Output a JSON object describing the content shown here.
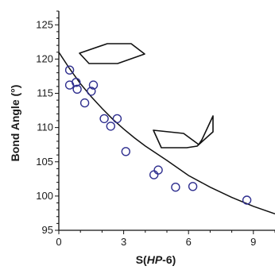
{
  "chart_data": {
    "type": "scatter",
    "xlabel": "S(HP-6)",
    "xlabel_parts": [
      {
        "text": "S(",
        "italic": false
      },
      {
        "text": "HP",
        "italic": true
      },
      {
        "text": "-6)",
        "italic": false
      }
    ],
    "ylabel": "Bond Angle (°)",
    "xlim": [
      0,
      10
    ],
    "ylim": [
      95,
      127
    ],
    "x_ticks": [
      0,
      3,
      6,
      9
    ],
    "y_ticks": [
      95,
      100,
      105,
      110,
      115,
      120,
      125
    ],
    "grid": false,
    "legend": "none",
    "marker_color": "#2f2f8f",
    "line_color": "#111111",
    "points": [
      {
        "x": 0.5,
        "y": 118.4
      },
      {
        "x": 0.5,
        "y": 116.2
      },
      {
        "x": 0.8,
        "y": 116.6
      },
      {
        "x": 0.85,
        "y": 115.6
      },
      {
        "x": 1.2,
        "y": 113.6
      },
      {
        "x": 1.5,
        "y": 115.3
      },
      {
        "x": 1.6,
        "y": 116.2
      },
      {
        "x": 2.1,
        "y": 111.3
      },
      {
        "x": 2.4,
        "y": 110.2
      },
      {
        "x": 2.7,
        "y": 111.3
      },
      {
        "x": 3.1,
        "y": 106.5
      },
      {
        "x": 4.4,
        "y": 103.1
      },
      {
        "x": 4.6,
        "y": 103.8
      },
      {
        "x": 5.4,
        "y": 101.3
      },
      {
        "x": 6.2,
        "y": 101.4
      },
      {
        "x": 8.7,
        "y": 99.4
      }
    ],
    "fit_curve": {
      "x": [
        0,
        0.5,
        1,
        1.5,
        2,
        2.5,
        3,
        3.5,
        4,
        5,
        6,
        7,
        8,
        9,
        10
      ],
      "y": [
        121.0,
        118.6,
        116.4,
        114.5,
        112.8,
        111.2,
        109.8,
        108.5,
        107.3,
        105.2,
        103.0,
        101.3,
        99.8,
        98.5,
        97.4
      ]
    }
  }
}
